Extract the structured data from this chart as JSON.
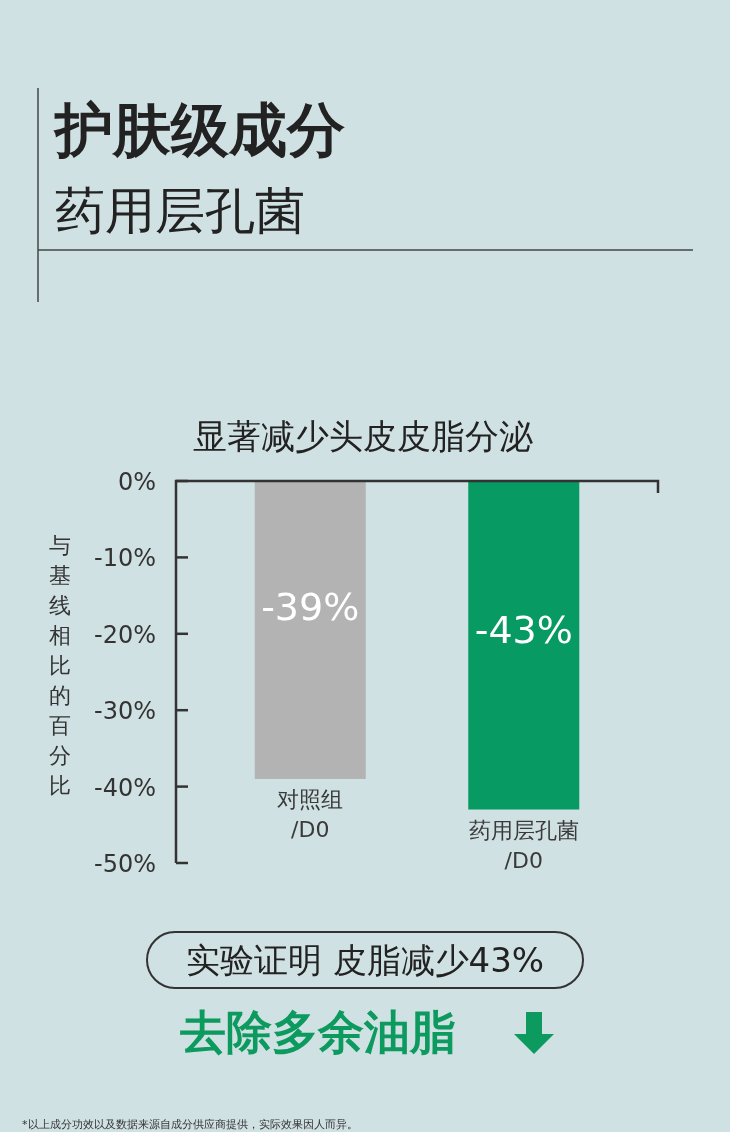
{
  "chart_data": {
    "type": "bar",
    "title": "护肤级成分",
    "subtitle": "药用层孔菌",
    "ylabel": "与基线相比的百分比",
    "categories": [
      "对照组\n/D0",
      "药用层孔菌\n/D0"
    ],
    "values": [
      -39,
      -43
    ],
    "colors": [
      "#b3b3b3",
      "#079a62"
    ],
    "value_labels": [
      "-39%",
      "-43%"
    ],
    "ylim": [
      -50,
      0
    ],
    "yticks": [
      {
        "value": 0,
        "label": "0%"
      },
      {
        "value": -10,
        "label": "-10%"
      },
      {
        "value": -20,
        "label": "-20%"
      },
      {
        "value": -30,
        "label": "-30%"
      },
      {
        "value": -40,
        "label": "-40%"
      },
      {
        "value": -50,
        "label": "-50%"
      }
    ],
    "annotations": [
      "显著减少头皮皮脂分泌",
      "实验证明 皮脂减少43%",
      "去除多余油脂",
      "*以上成分功效以及数据来源自成分供应商提供，实际效果因人而异。"
    ]
  }
}
